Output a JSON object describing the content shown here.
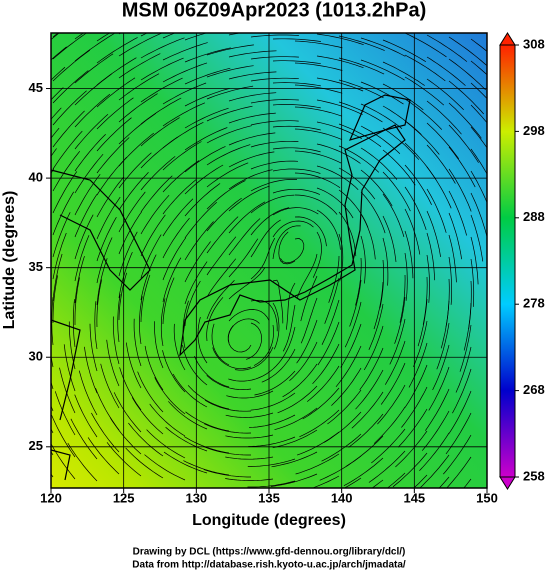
{
  "chart_data": {
    "type": "streamline",
    "title": "MSM 06Z09Apr2023 (1013.2hPa)",
    "x_label": "Longitude (degrees)",
    "y_label": "Latitude  (degrees)",
    "xlim": [
      120,
      150
    ],
    "xticks": [
      120,
      125,
      130,
      135,
      140,
      145,
      150
    ],
    "ylim": [
      22.7,
      48.1
    ],
    "yticks": [
      25,
      30,
      35,
      40,
      45
    ],
    "grid": true,
    "colorbar": {
      "lim": [
        258,
        308
      ],
      "ticks": [
        258,
        268,
        278,
        288,
        298,
        308
      ],
      "colors": [
        "#cc00cc",
        "#0000cc",
        "#00ccff",
        "#00cc44",
        "#ccee00",
        "#ff2200"
      ]
    },
    "credits": [
      "Drawing by DCL (https://www.gfd-dennou.org/library/dcl/)",
      "Data from http://database.rish.kyoto-u.ac.jp/arch/jmadata/"
    ]
  }
}
